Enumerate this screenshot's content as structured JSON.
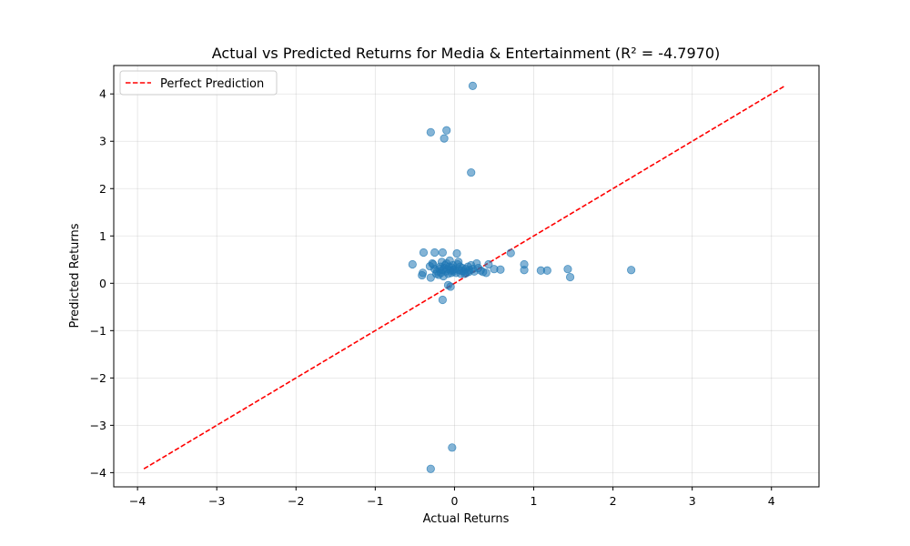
{
  "chart_data": {
    "type": "scatter",
    "title": "Actual vs Predicted Returns for Media & Entertainment (R² = -4.7970)",
    "xlabel": "Actual Returns",
    "ylabel": "Predicted Returns",
    "xlim": [
      -4.3,
      4.6
    ],
    "ylim": [
      -4.3,
      4.6
    ],
    "xticks": [
      -4,
      -3,
      -2,
      -1,
      0,
      1,
      2,
      3,
      4
    ],
    "yticks": [
      -4,
      -3,
      -2,
      -1,
      0,
      1,
      2,
      3,
      4
    ],
    "xtick_labels": [
      "−4",
      "−3",
      "−2",
      "−1",
      "0",
      "1",
      "2",
      "3",
      "4"
    ],
    "ytick_labels": [
      "−4",
      "−3",
      "−2",
      "−1",
      "0",
      "1",
      "2",
      "3",
      "4"
    ],
    "grid": true,
    "legend_position": "top-left",
    "legend": [
      {
        "label": "Perfect Prediction"
      }
    ],
    "point_color": "#1f77b4",
    "line_color": "#ff0000",
    "perfect_line": {
      "x": [
        -3.92,
        4.16
      ],
      "y": [
        -3.92,
        4.16
      ]
    },
    "points": [
      [
        0.23,
        4.17
      ],
      [
        -0.3,
        3.19
      ],
      [
        -0.1,
        3.23
      ],
      [
        -0.13,
        3.06
      ],
      [
        0.21,
        2.34
      ],
      [
        -0.03,
        -3.47
      ],
      [
        -0.3,
        -3.92
      ],
      [
        -0.15,
        -0.35
      ],
      [
        -0.08,
        -0.04
      ],
      [
        -0.05,
        -0.07
      ],
      [
        -0.53,
        0.4
      ],
      [
        -0.4,
        0.22
      ],
      [
        -0.41,
        0.17
      ],
      [
        -0.39,
        0.65
      ],
      [
        -0.25,
        0.65
      ],
      [
        -0.15,
        0.65
      ],
      [
        0.03,
        0.63
      ],
      [
        0.71,
        0.64
      ],
      [
        -0.31,
        0.36
      ],
      [
        -0.3,
        0.12
      ],
      [
        -0.27,
        0.4
      ],
      [
        -0.25,
        0.3
      ],
      [
        -0.22,
        0.25
      ],
      [
        -0.2,
        0.18
      ],
      [
        -0.18,
        0.35
      ],
      [
        -0.17,
        0.22
      ],
      [
        -0.16,
        0.45
      ],
      [
        -0.15,
        0.28
      ],
      [
        -0.14,
        0.15
      ],
      [
        -0.12,
        0.38
      ],
      [
        -0.11,
        0.25
      ],
      [
        -0.1,
        0.42
      ],
      [
        -0.09,
        0.3
      ],
      [
        -0.08,
        0.2
      ],
      [
        -0.07,
        0.35
      ],
      [
        -0.06,
        0.48
      ],
      [
        -0.05,
        0.27
      ],
      [
        -0.04,
        0.22
      ],
      [
        -0.03,
        0.33
      ],
      [
        -0.02,
        0.38
      ],
      [
        -0.01,
        0.25
      ],
      [
        0.0,
        0.3
      ],
      [
        0.02,
        0.22
      ],
      [
        0.04,
        0.4
      ],
      [
        0.05,
        0.45
      ],
      [
        0.06,
        0.28
      ],
      [
        0.07,
        0.35
      ],
      [
        0.08,
        0.2
      ],
      [
        0.1,
        0.32
      ],
      [
        0.12,
        0.25
      ],
      [
        0.14,
        0.3
      ],
      [
        0.15,
        0.22
      ],
      [
        0.17,
        0.35
      ],
      [
        0.19,
        0.28
      ],
      [
        0.21,
        0.38
      ],
      [
        0.23,
        0.3
      ],
      [
        0.25,
        0.25
      ],
      [
        0.28,
        0.42
      ],
      [
        0.3,
        0.32
      ],
      [
        0.33,
        0.27
      ],
      [
        0.36,
        0.24
      ],
      [
        0.4,
        0.22
      ],
      [
        0.43,
        0.4
      ],
      [
        0.5,
        0.3
      ],
      [
        0.58,
        0.29
      ],
      [
        0.88,
        0.4
      ],
      [
        0.88,
        0.28
      ],
      [
        1.09,
        0.27
      ],
      [
        1.17,
        0.27
      ],
      [
        1.43,
        0.3
      ],
      [
        1.46,
        0.13
      ],
      [
        2.23,
        0.28
      ],
      [
        -0.23,
        0.2
      ],
      [
        -0.19,
        0.3
      ],
      [
        -0.13,
        0.32
      ],
      [
        -0.02,
        0.28
      ],
      [
        0.09,
        0.26
      ],
      [
        0.18,
        0.24
      ],
      [
        -0.28,
        0.42
      ],
      [
        0.13,
        0.2
      ]
    ]
  }
}
